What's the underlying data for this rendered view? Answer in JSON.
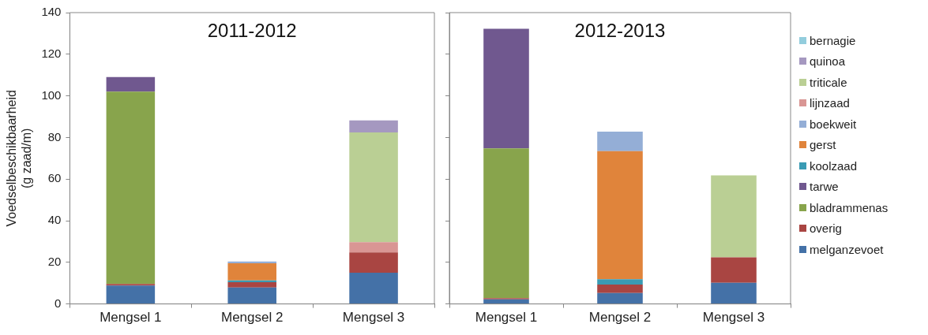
{
  "chart_data": [
    {
      "type": "bar",
      "title": "2011-2012",
      "ylabel": "Voedselbeschikbaarheid\n(g zaad/m)",
      "categories": [
        "Mengsel 1",
        "Mengsel 2",
        "Mengsel 3"
      ],
      "stacked": true,
      "ylim": [
        0,
        140
      ],
      "yticks": [
        0,
        20,
        40,
        60,
        80,
        100,
        120,
        140
      ],
      "grid": false,
      "legend": false,
      "series": [
        {
          "color": "#4471a7",
          "values": [
            8.8,
            7.9,
            15.0
          ]
        },
        {
          "color": "#a94542",
          "values": [
            0.8,
            2.6,
            9.8
          ]
        },
        {
          "color": "#88a44c",
          "values": [
            92.4,
            null,
            null
          ]
        },
        {
          "color": "#70588f",
          "values": [
            7.0,
            null,
            null
          ]
        },
        {
          "color": "#3a9bb4",
          "values": [
            null,
            0.8,
            null
          ]
        },
        {
          "color": "#e0843b",
          "values": [
            null,
            8.2,
            null
          ]
        },
        {
          "color": "#94aed6",
          "values": [
            null,
            0.9,
            null
          ]
        },
        {
          "color": "#d99694",
          "values": [
            null,
            null,
            4.9
          ]
        },
        {
          "color": "#bacf94",
          "values": [
            null,
            null,
            52.7
          ]
        },
        {
          "color": "#a598c0",
          "values": [
            null,
            null,
            5.8
          ]
        }
      ]
    },
    {
      "type": "bar",
      "title": "2012-2013",
      "categories": [
        "Mengsel 1",
        "Mengsel 2",
        "Mengsel 3"
      ],
      "stacked": true,
      "ylim": [
        0,
        140
      ],
      "yticks": [
        0,
        20,
        40,
        60,
        80,
        100,
        120,
        140
      ],
      "tick_labels": "x",
      "grid": false,
      "legend": "right",
      "series": [
        {
          "name": "melganzevoet",
          "color": "#4471a7",
          "values": [
            2.2,
            5.2,
            10.2
          ]
        },
        {
          "name": "overig",
          "color": "#a94542",
          "values": [
            0.6,
            4.1,
            12.2
          ]
        },
        {
          "name": "bladrammenas",
          "color": "#88a44c",
          "values": [
            72.0,
            null,
            null
          ]
        },
        {
          "name": "tarwe",
          "color": "#70588f",
          "values": [
            57.4,
            null,
            null
          ]
        },
        {
          "name": "koolzaad",
          "color": "#3a9bb4",
          "values": [
            null,
            2.6,
            null
          ]
        },
        {
          "name": "gerst",
          "color": "#e0843b",
          "values": [
            null,
            61.5,
            null
          ]
        },
        {
          "name": "boekweit",
          "color": "#94aed6",
          "values": [
            null,
            9.4,
            null
          ]
        },
        {
          "name": "lijnzaad",
          "color": "#d99694",
          "values": [
            null,
            null,
            null
          ]
        },
        {
          "name": "triticale",
          "color": "#bacf94",
          "values": [
            null,
            null,
            39.4
          ]
        },
        {
          "name": "quinoa",
          "color": "#a598c0",
          "values": [
            null,
            null,
            null
          ]
        },
        {
          "name": "bernagie",
          "color": "#93cddd",
          "values": [
            null,
            null,
            null
          ]
        }
      ]
    }
  ]
}
